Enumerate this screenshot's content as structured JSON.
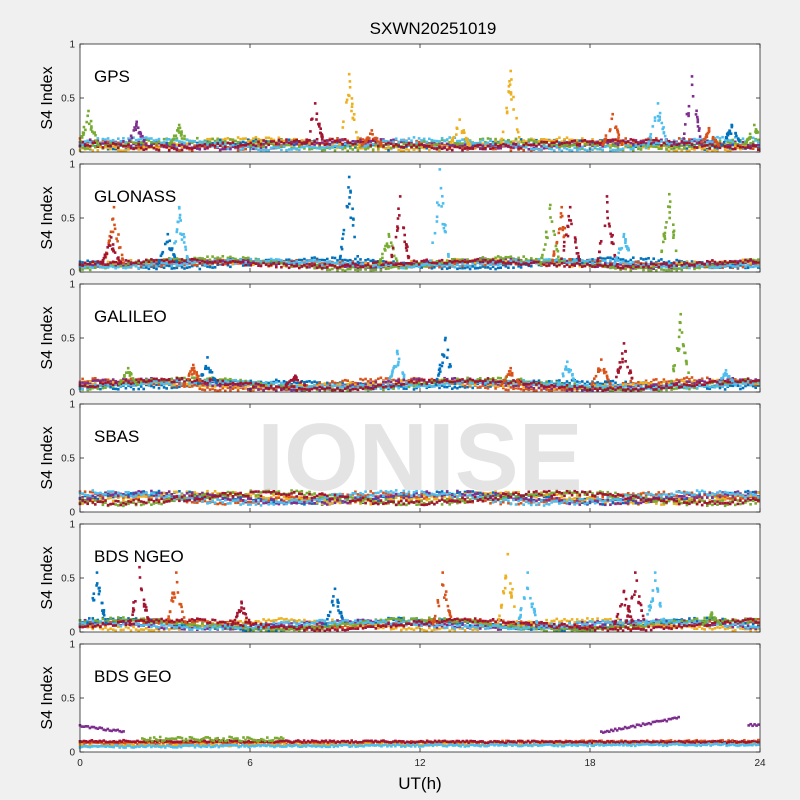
{
  "title": "SXWN20251019",
  "watermark": "IONISE",
  "colors": {
    "figure_bg": "#f0f0f0",
    "axes_bg": "#ffffff",
    "axis": "#262626",
    "watermark": "#dcdcdc",
    "series": [
      "#0072bd",
      "#d95319",
      "#edb120",
      "#7e2f8e",
      "#77ac30",
      "#4dbeee",
      "#a2142f"
    ]
  },
  "chart_data": [
    {
      "type": "scatter",
      "panel_label": "GPS",
      "ylabel": "S4 Index",
      "xlim": [
        0,
        24
      ],
      "ylim": [
        0,
        1
      ],
      "y_ticks": [
        0,
        0.5,
        1
      ],
      "y_tick_labels": [
        "0",
        "0.5",
        "1"
      ],
      "base_level": 0.06,
      "noise": 0.05,
      "spikes": [
        {
          "t": 0.3,
          "peak": 0.38,
          "color": 4
        },
        {
          "t": 2.0,
          "peak": 0.28,
          "color": 3
        },
        {
          "t": 3.5,
          "peak": 0.25,
          "color": 4
        },
        {
          "t": 8.3,
          "peak": 0.45,
          "color": 6
        },
        {
          "t": 9.5,
          "peak": 0.72,
          "color": 2
        },
        {
          "t": 10.3,
          "peak": 0.2,
          "color": 1
        },
        {
          "t": 13.4,
          "peak": 0.3,
          "color": 2
        },
        {
          "t": 15.2,
          "peak": 0.75,
          "color": 2
        },
        {
          "t": 18.8,
          "peak": 0.35,
          "color": 1
        },
        {
          "t": 20.4,
          "peak": 0.45,
          "color": 5
        },
        {
          "t": 21.6,
          "peak": 0.7,
          "color": 3
        },
        {
          "t": 22.2,
          "peak": 0.22,
          "color": 1
        },
        {
          "t": 23.0,
          "peak": 0.25,
          "color": 0
        },
        {
          "t": 23.8,
          "peak": 0.25,
          "color": 4
        }
      ]
    },
    {
      "type": "scatter",
      "panel_label": "GLONASS",
      "ylabel": "S4 Index",
      "xlim": [
        0,
        24
      ],
      "ylim": [
        0,
        1
      ],
      "y_ticks": [
        0,
        0.5,
        1
      ],
      "y_tick_labels": [
        "0",
        "0.5",
        "1"
      ],
      "base_level": 0.07,
      "noise": 0.04,
      "spikes": [
        {
          "t": 1.2,
          "peak": 0.6,
          "color": 1
        },
        {
          "t": 1.1,
          "peak": 0.32,
          "color": 6
        },
        {
          "t": 3.5,
          "peak": 0.6,
          "color": 5
        },
        {
          "t": 3.1,
          "peak": 0.35,
          "color": 0
        },
        {
          "t": 9.5,
          "peak": 0.88,
          "color": 0
        },
        {
          "t": 10.9,
          "peak": 0.35,
          "color": 4
        },
        {
          "t": 11.3,
          "peak": 0.7,
          "color": 6
        },
        {
          "t": 12.7,
          "peak": 0.95,
          "color": 5
        },
        {
          "t": 16.6,
          "peak": 0.62,
          "color": 4
        },
        {
          "t": 17.0,
          "peak": 0.6,
          "color": 1
        },
        {
          "t": 17.3,
          "peak": 0.6,
          "color": 6
        },
        {
          "t": 18.6,
          "peak": 0.7,
          "color": 6
        },
        {
          "t": 19.2,
          "peak": 0.35,
          "color": 5
        },
        {
          "t": 20.8,
          "peak": 0.72,
          "color": 4
        }
      ]
    },
    {
      "type": "scatter",
      "panel_label": "GALILEO",
      "ylabel": "S4 Index",
      "xlim": [
        0,
        24
      ],
      "ylim": [
        0,
        1
      ],
      "y_ticks": [
        0,
        0.5,
        1
      ],
      "y_tick_labels": [
        "0",
        "0.5",
        "1"
      ],
      "base_level": 0.06,
      "noise": 0.04,
      "spikes": [
        {
          "t": 1.7,
          "peak": 0.22,
          "color": 4
        },
        {
          "t": 4.5,
          "peak": 0.32,
          "color": 0
        },
        {
          "t": 4.0,
          "peak": 0.25,
          "color": 1
        },
        {
          "t": 7.6,
          "peak": 0.15,
          "color": 6
        },
        {
          "t": 11.2,
          "peak": 0.38,
          "color": 5
        },
        {
          "t": 12.9,
          "peak": 0.5,
          "color": 0
        },
        {
          "t": 15.2,
          "peak": 0.22,
          "color": 1
        },
        {
          "t": 17.2,
          "peak": 0.28,
          "color": 5
        },
        {
          "t": 19.2,
          "peak": 0.45,
          "color": 6
        },
        {
          "t": 18.4,
          "peak": 0.3,
          "color": 1
        },
        {
          "t": 21.2,
          "peak": 0.72,
          "color": 4
        },
        {
          "t": 22.8,
          "peak": 0.2,
          "color": 5
        }
      ]
    },
    {
      "type": "scatter",
      "panel_label": "SBAS",
      "ylabel": "S4 Index",
      "xlim": [
        0,
        24
      ],
      "ylim": [
        0,
        1
      ],
      "y_ticks": [
        0,
        0.5,
        1
      ],
      "y_tick_labels": [
        "0",
        "0.5",
        "1"
      ],
      "base_level": 0.12,
      "noise": 0.05,
      "spikes": []
    },
    {
      "type": "scatter",
      "panel_label": "BDS NGEO",
      "ylabel": "S4 Index",
      "xlim": [
        0,
        24
      ],
      "ylim": [
        0,
        1
      ],
      "y_ticks": [
        0,
        0.5,
        1
      ],
      "y_tick_labels": [
        "0",
        "0.5",
        "1"
      ],
      "base_level": 0.06,
      "noise": 0.04,
      "spikes": [
        {
          "t": 0.6,
          "peak": 0.55,
          "color": 0
        },
        {
          "t": 2.1,
          "peak": 0.6,
          "color": 6
        },
        {
          "t": 3.4,
          "peak": 0.55,
          "color": 1
        },
        {
          "t": 5.7,
          "peak": 0.28,
          "color": 6
        },
        {
          "t": 9.0,
          "peak": 0.4,
          "color": 0
        },
        {
          "t": 12.8,
          "peak": 0.55,
          "color": 1
        },
        {
          "t": 15.1,
          "peak": 0.72,
          "color": 2
        },
        {
          "t": 15.8,
          "peak": 0.55,
          "color": 5
        },
        {
          "t": 19.2,
          "peak": 0.38,
          "color": 6
        },
        {
          "t": 19.6,
          "peak": 0.55,
          "color": 6
        },
        {
          "t": 20.3,
          "peak": 0.55,
          "color": 5
        },
        {
          "t": 22.3,
          "peak": 0.18,
          "color": 4
        }
      ]
    },
    {
      "type": "scatter",
      "panel_label": "BDS GEO",
      "ylabel": "S4 Index",
      "xlabel": "UT(h)",
      "xlim": [
        0,
        24
      ],
      "ylim": [
        0,
        1
      ],
      "x_ticks": [
        0,
        6,
        12,
        18,
        24
      ],
      "x_tick_labels": [
        "0",
        "6",
        "12",
        "18",
        "24"
      ],
      "y_ticks": [
        0,
        0.5,
        1
      ],
      "y_tick_labels": [
        "0",
        "0.5",
        "1"
      ],
      "tracks": [
        {
          "from": 0,
          "to": 24,
          "start": 0.08,
          "end": 0.1,
          "jitter": 0.01,
          "color": 1
        },
        {
          "from": 0,
          "to": 24,
          "start": 0.06,
          "end": 0.08,
          "jitter": 0.01,
          "color": 2
        },
        {
          "from": 0,
          "to": 24,
          "start": 0.1,
          "end": 0.09,
          "jitter": 0.01,
          "color": 6
        },
        {
          "from": 2.2,
          "to": 7.2,
          "start": 0.12,
          "end": 0.12,
          "jitter": 0.02,
          "color": 4
        },
        {
          "from": 0,
          "to": 1.6,
          "start": 0.24,
          "end": 0.19,
          "jitter": 0.01,
          "color": 3
        },
        {
          "from": 18.4,
          "to": 21.2,
          "start": 0.18,
          "end": 0.32,
          "jitter": 0.01,
          "color": 3
        },
        {
          "from": 23.6,
          "to": 24,
          "start": 0.25,
          "end": 0.25,
          "jitter": 0.01,
          "color": 3
        },
        {
          "from": 0,
          "to": 24,
          "start": 0.05,
          "end": 0.07,
          "jitter": 0.01,
          "color": 5
        }
      ]
    }
  ]
}
